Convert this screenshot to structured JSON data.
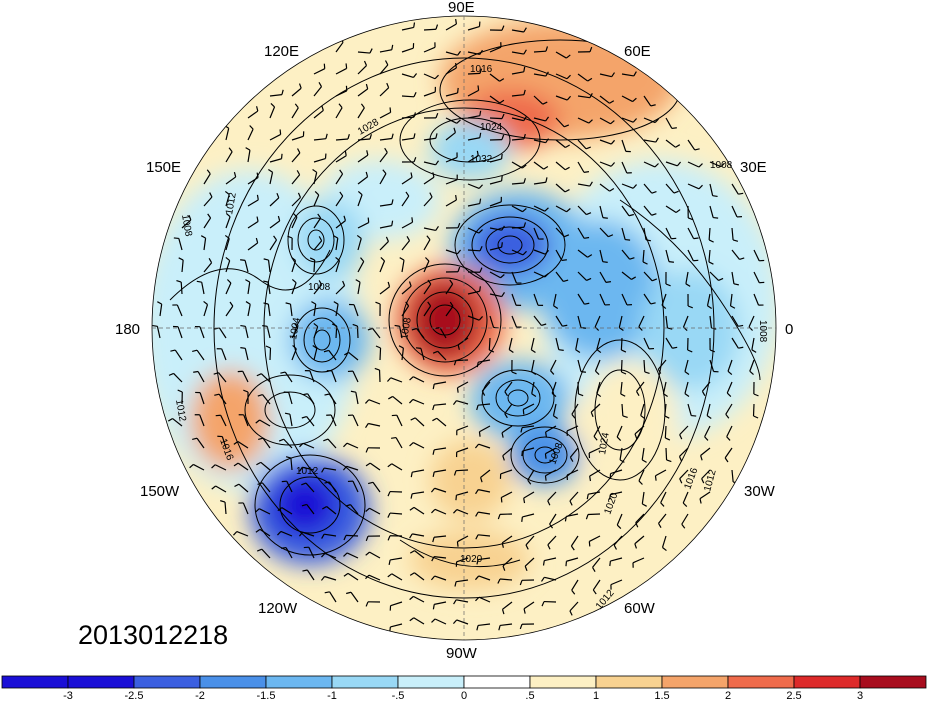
{
  "timestamp": "2013012218",
  "map": {
    "projection": "north-polar-stereographic",
    "longitude_labels": [
      "90E",
      "60E",
      "30E",
      "0",
      "30W",
      "60W",
      "90W",
      "120W",
      "150W",
      "180",
      "150E",
      "120E"
    ]
  },
  "contour_labels": [
    "1016",
    "1024",
    "1032",
    "1008",
    "1012",
    "1008",
    "1028",
    "1008",
    "1004",
    "1008",
    "1012",
    "1016",
    "1012",
    "1024",
    "1016",
    "1020",
    "1012",
    "1020",
    "1008",
    "1012",
    "1008"
  ],
  "colorbar": {
    "ticks": [
      "-3",
      "-2.5",
      "-2",
      "-1.5",
      "-1",
      "-.5",
      "0",
      ".5",
      "1",
      "1.5",
      "2",
      "2.5",
      "3"
    ],
    "colors": [
      "#1a0fd6",
      "#3b5fe0",
      "#4a90e8",
      "#6cb7f0",
      "#99d8f5",
      "#c9effa",
      "#ffffff",
      "#fdf0c4",
      "#f8d291",
      "#f4a46a",
      "#ef6b4b",
      "#dd2a2a",
      "#a80d1e"
    ]
  }
}
